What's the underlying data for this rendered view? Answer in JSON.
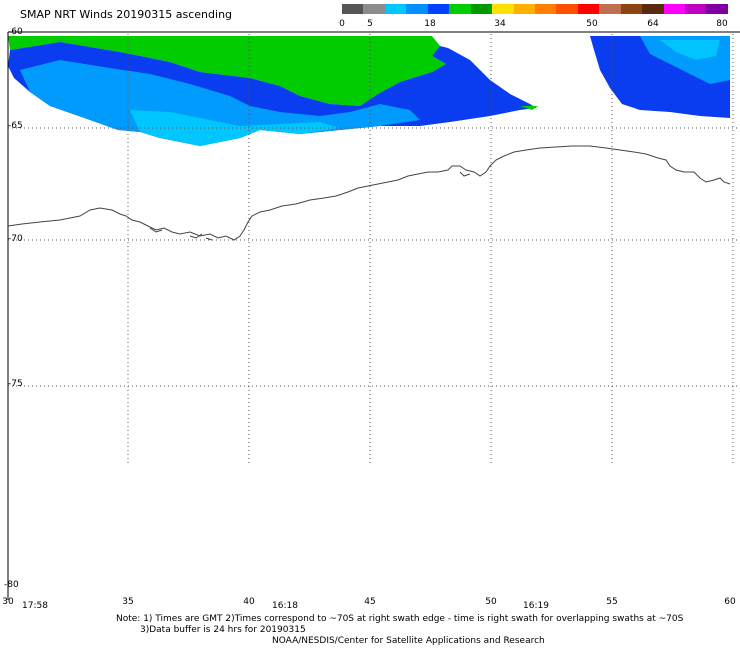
{
  "title": "SMAP NRT Winds 20190315 ascending",
  "colorbar": {
    "labels": [
      "0",
      "5",
      "18",
      "34",
      "50",
      "64",
      "80"
    ],
    "segments": [
      {
        "color": "#555555"
      },
      {
        "color": "#8c8c8c"
      },
      {
        "color": "#00c8ff"
      },
      {
        "color": "#0090ff"
      },
      {
        "color": "#0040ff"
      },
      {
        "color": "#00cc00"
      },
      {
        "color": "#009900"
      },
      {
        "color": "#ffe000"
      },
      {
        "color": "#ffb000"
      },
      {
        "color": "#ff8000"
      },
      {
        "color": "#ff5000"
      },
      {
        "color": "#ff0000"
      },
      {
        "color": "#c07050"
      },
      {
        "color": "#8b4513"
      },
      {
        "color": "#5a2a10"
      },
      {
        "color": "#ff00ff"
      },
      {
        "color": "#c000c0"
      },
      {
        "color": "#8000a0"
      }
    ]
  },
  "lat_labels": [
    "-60",
    "-65",
    "-70",
    "-75",
    "-80"
  ],
  "lon_labels": [
    "30",
    "35",
    "40",
    "45",
    "50",
    "55",
    "60"
  ],
  "time_labels": [
    "17:58",
    "16:18",
    "16:19"
  ],
  "notes": {
    "line1": "Note: 1) Times are GMT 2)Times correspond to ~70S at right swath edge - time is right swath for overlapping swaths at ~70S",
    "line2": "3)Data buffer is 24 hrs for 20190315",
    "line3": "NOAA/NESDIS/Center for Satellite Applications and Research"
  }
}
